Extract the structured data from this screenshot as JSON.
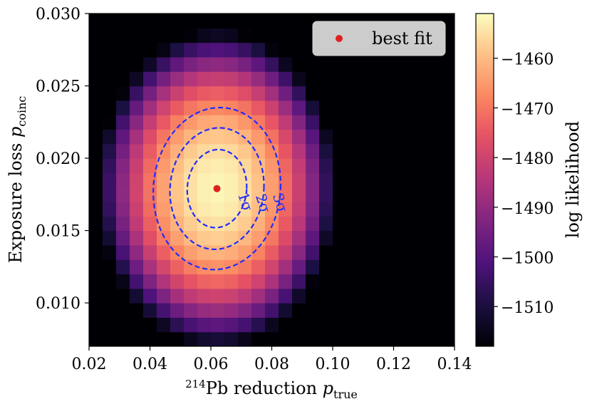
{
  "chart_data": {
    "type": "heatmap",
    "title": "",
    "xlabel_sup": "214",
    "xlabel_main": "Pb reduction ",
    "xlabel_var": "p",
    "xlabel_sub": "true",
    "ylabel_main": "Exposure loss ",
    "ylabel_var": "p",
    "ylabel_sub": "coinc",
    "xlim": [
      0.02,
      0.14
    ],
    "ylim": [
      0.007,
      0.03
    ],
    "x_ticks": [
      0.02,
      0.04,
      0.06,
      0.08,
      0.1,
      0.12,
      0.14
    ],
    "x_tick_labels": [
      "0.02",
      "0.04",
      "0.06",
      "0.08",
      "0.10",
      "0.12",
      "0.14"
    ],
    "y_ticks": [
      0.01,
      0.015,
      0.02,
      0.025,
      0.03
    ],
    "y_tick_labels": [
      "0.010",
      "0.015",
      "0.020",
      "0.025",
      "0.030"
    ],
    "grid": {
      "nx": 27,
      "ny": 23
    },
    "model": {
      "peak_log_likelihood": -1452,
      "best_fit": {
        "x": 0.062,
        "y": 0.0179
      },
      "contour_levels": [
        {
          "label": "1σ",
          "rx": 0.0098,
          "ry": 0.0027
        },
        {
          "label": "2σ",
          "rx": 0.0155,
          "ry": 0.0042
        },
        {
          "label": "3σ",
          "rx": 0.021,
          "ry": 0.0056
        }
      ]
    },
    "colorbar": {
      "label": "log likelihood",
      "range": [
        -1518,
        -1451
      ],
      "ticks": [
        -1460,
        -1470,
        -1480,
        -1490,
        -1500,
        -1510
      ],
      "tick_labels": [
        "−1460",
        "−1470",
        "−1480",
        "−1490",
        "−1500",
        "−1510"
      ]
    },
    "legend": {
      "label": "best fit",
      "position": "top-right",
      "marker_color": "#e0201e"
    },
    "contour_color": "#1f2cff",
    "colormap": "magma"
  }
}
